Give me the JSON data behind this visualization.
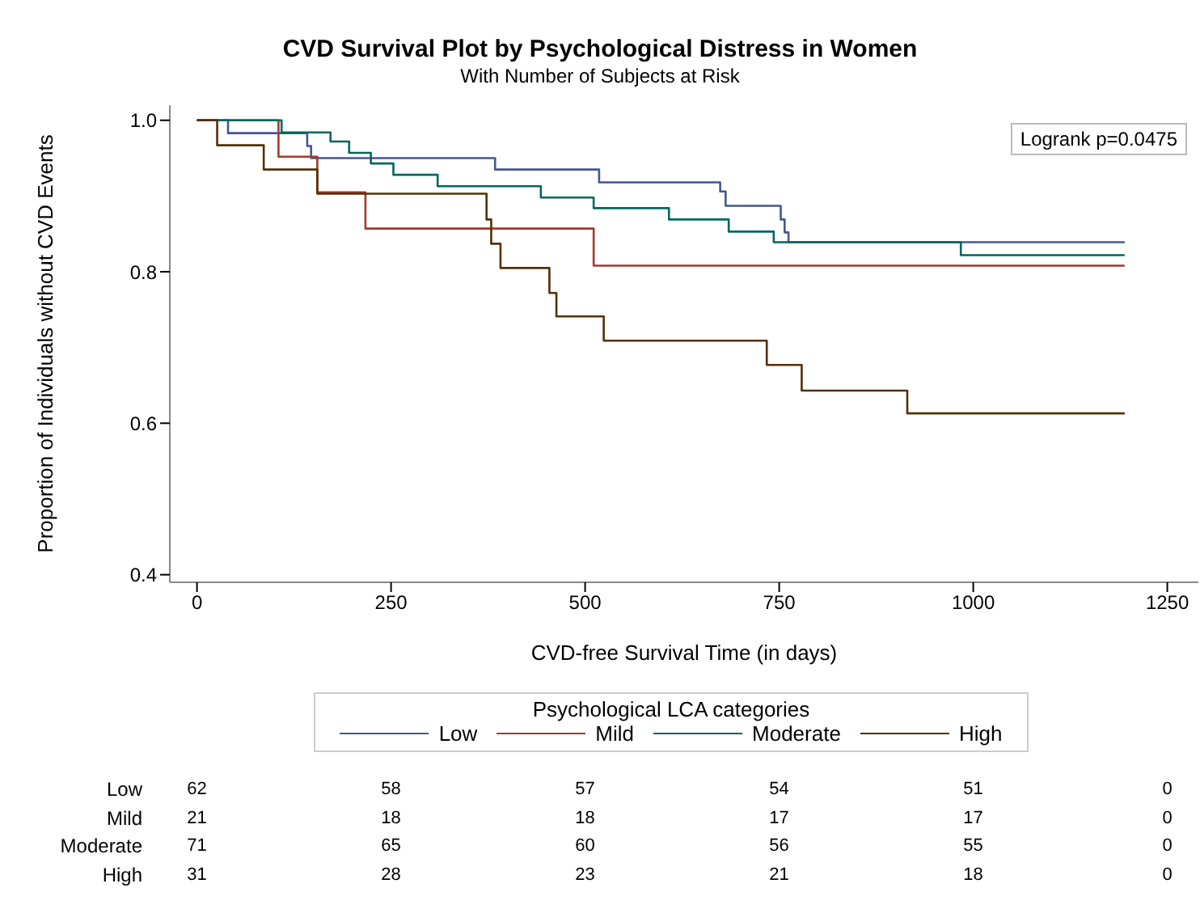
{
  "chart_data": {
    "type": "step",
    "title": "CVD Survival Plot by Psychological Distress in Women",
    "subtitle": "With Number of Subjects at Risk",
    "xlabel": "CVD-free Survival Time (in days)",
    "ylabel": "Proportion of Individuals without CVD Events",
    "legend_title": "Psychological LCA categories",
    "legend": "bottom",
    "marker": "none",
    "line_style": "solid",
    "xlim": [
      -35,
      1290
    ],
    "xticks": [
      0,
      250,
      500,
      750,
      1000,
      1250
    ],
    "ylim": [
      0.39,
      1.02
    ],
    "yticks": [
      0.4,
      0.6,
      0.8,
      {
        "value": 1,
        "label": "1.0"
      }
    ],
    "series": [
      {
        "name": "Low",
        "color": "#445694",
        "x": [
          0,
          40,
          142,
          147,
          384,
          518,
          674,
          681,
          752,
          757,
          762,
          1195
        ],
        "values": [
          1,
          0.983,
          0.966,
          0.95,
          0.935,
          0.918,
          0.906,
          0.887,
          0.869,
          0.852,
          0.839,
          0.839
        ]
      },
      {
        "name": "Mild",
        "color": "#a23a2e",
        "x": [
          0,
          105,
          155,
          217,
          511,
          1195
        ],
        "values": [
          1,
          0.952,
          0.905,
          0.857,
          0.808,
          0.808
        ]
      },
      {
        "name": "Moderate",
        "color": "#01665e",
        "x": [
          0,
          109,
          172,
          196,
          224,
          253,
          310,
          443,
          511,
          608,
          685,
          743,
          984,
          1195
        ],
        "values": [
          1,
          0.984,
          0.972,
          0.957,
          0.943,
          0.928,
          0.913,
          0.898,
          0.884,
          0.869,
          0.853,
          0.839,
          0.822,
          0.822
        ]
      },
      {
        "name": "High",
        "color": "#543005",
        "x": [
          0,
          26,
          86,
          155,
          373,
          379,
          391,
          454,
          463,
          524,
          734,
          779,
          915,
          1195
        ],
        "values": [
          1,
          0.967,
          0.935,
          0.903,
          0.869,
          0.837,
          0.805,
          0.772,
          0.741,
          0.709,
          0.677,
          0.643,
          0.613,
          0.613
        ]
      }
    ],
    "annotations": [
      "Logrank p=0.0475",
      "Low",
      "62",
      "58",
      "57",
      "54",
      "51",
      "0",
      "Mild",
      "21",
      "18",
      "18",
      "17",
      "17",
      "0",
      "Moderate",
      "71",
      "65",
      "60",
      "56",
      "55",
      "0",
      "High",
      "31",
      "28",
      "23",
      "21",
      "18",
      "0"
    ]
  }
}
